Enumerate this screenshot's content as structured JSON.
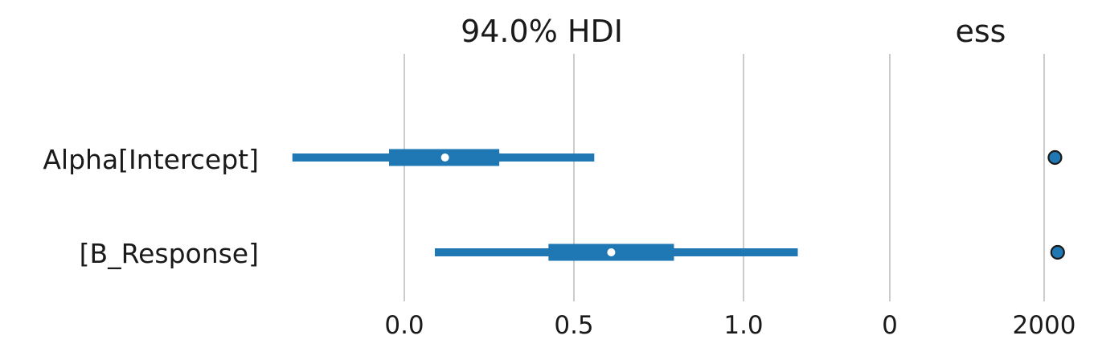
{
  "chart_data": {
    "type": "forest",
    "colors": {
      "series": "#1f77b4",
      "median": "#ffffff",
      "grid": "#cccccc",
      "marker_edge": "#1a1a1a"
    },
    "rows": [
      "Alpha[Intercept]",
      "[B_Response]"
    ],
    "panels": [
      {
        "title": "94.0% HDI",
        "xlim": [
          -0.33,
          1.17
        ],
        "ticks": [
          0.0,
          0.5,
          1.0
        ],
        "tick_labels": [
          "0.0",
          "0.5",
          "1.0"
        ],
        "intervals": [
          {
            "row": "Alpha[Intercept]",
            "hdi_low": -0.33,
            "hdi_high": 0.56,
            "q25": -0.045,
            "q75": 0.28,
            "median": 0.12
          },
          {
            "row": "[B_Response]",
            "hdi_low": 0.09,
            "hdi_high": 1.16,
            "q25": 0.425,
            "q75": 0.795,
            "median": 0.61
          }
        ]
      },
      {
        "title": "ess",
        "xlim": [
          0,
          2170
        ],
        "ticks": [
          0,
          2000
        ],
        "tick_labels": [
          "0",
          "2000"
        ],
        "points": [
          {
            "row": "Alpha[Intercept]",
            "value": 2140
          },
          {
            "row": "[B_Response]",
            "value": 2175
          }
        ]
      }
    ]
  }
}
